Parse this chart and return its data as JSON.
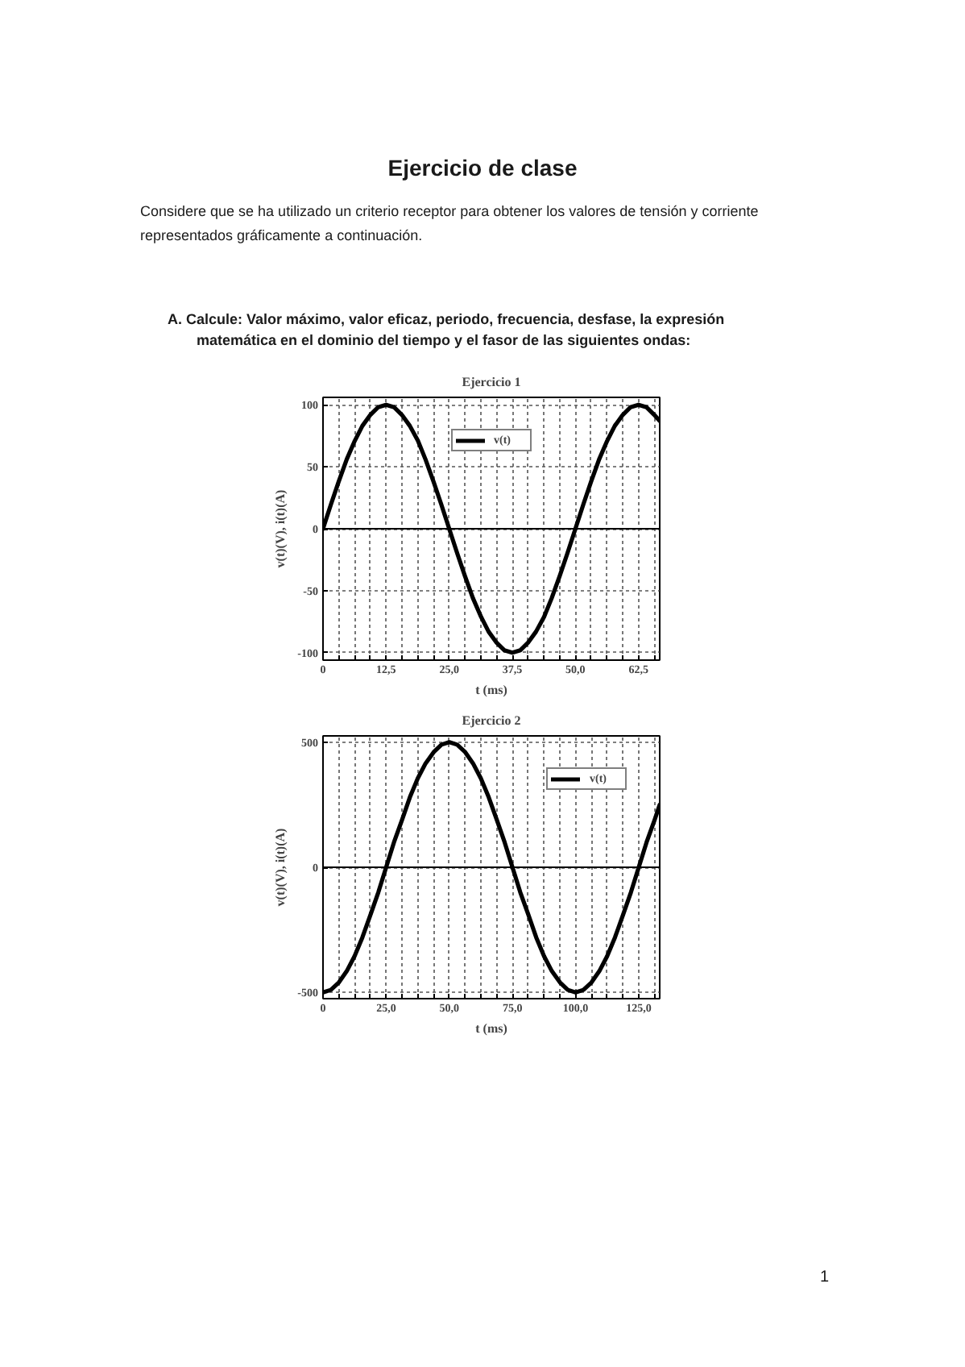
{
  "chart_data": [
    {
      "type": "other",
      "title": "Ejercicio de clase",
      "subtitle": "Considere que se ha utilizado un criterio receptor para obtener los valores de tensión y corriente representados gráficamente a continuación.",
      "annotations": [
        "A. Calcule: Valor máximo, valor eficaz, periodo, frecuencia, desfase, la expresión matemática en el dominio del tiempo y el fasor de las siguientes ondas:"
      ]
    },
    {
      "type": "line",
      "title": "Ejercicio 1",
      "xlabel": "t (ms)",
      "ylabel": "v(t)(V), i(t)(A)",
      "x": [
        0,
        1.6,
        3.1,
        4.7,
        6.3,
        7.8,
        9.4,
        10.9,
        12.5,
        14.1,
        15.6,
        17.2,
        18.8,
        20.3,
        21.9,
        23.4,
        25,
        26.6,
        28.1,
        29.7,
        31.3,
        32.8,
        34.4,
        35.9,
        37.5,
        39.1,
        40.6,
        42.2,
        43.8,
        45.3,
        46.9,
        48.4,
        50,
        51.6,
        53.1,
        54.7,
        56.3,
        57.8,
        59.4,
        60.9,
        62.5,
        64.1,
        65.6,
        66.7
      ],
      "series": [
        {
          "name": "v(t)",
          "color": "#000000",
          "values": [
            0,
            20,
            38,
            56,
            71,
            83,
            92,
            98,
            100,
            98,
            92,
            83,
            71,
            56,
            38,
            20,
            0,
            -20,
            -38,
            -56,
            -71,
            -83,
            -92,
            -98,
            -100,
            -98,
            -92,
            -83,
            -71,
            -56,
            -38,
            -20,
            0,
            20,
            38,
            56,
            71,
            83,
            92,
            98,
            100,
            98,
            92,
            87
          ]
        }
      ],
      "xlim": [
        0,
        66.7
      ],
      "ylim": [
        -106,
        106
      ],
      "xticks": [
        0,
        {
          "value": 3.125,
          "label": null
        },
        {
          "value": 6.25,
          "label": null
        },
        {
          "value": 9.375,
          "label": null
        },
        {
          "value": 12.5,
          "label": "12,5"
        },
        {
          "value": 15.625,
          "label": null
        },
        {
          "value": 18.75,
          "label": null
        },
        {
          "value": 21.875,
          "label": null
        },
        {
          "value": 25,
          "label": "25,0"
        },
        {
          "value": 28.125,
          "label": null
        },
        {
          "value": 31.25,
          "label": null
        },
        {
          "value": 34.375,
          "label": null
        },
        {
          "value": 37.5,
          "label": "37,5"
        },
        {
          "value": 40.625,
          "label": null
        },
        {
          "value": 43.75,
          "label": null
        },
        {
          "value": 46.875,
          "label": null
        },
        {
          "value": 50,
          "label": "50,0"
        },
        {
          "value": 53.125,
          "label": null
        },
        {
          "value": 56.25,
          "label": null
        },
        {
          "value": 59.375,
          "label": null
        },
        {
          "value": 62.5,
          "label": "62,5"
        },
        {
          "value": 65.625,
          "label": null
        }
      ],
      "yticks": [
        -100,
        -50,
        0,
        50,
        100
      ],
      "grid": true,
      "legend": "top",
      "ref_lines": [
        {
          "axis": "y",
          "value": 0,
          "color": "#000000"
        }
      ]
    },
    {
      "type": "line",
      "title": "Ejercicio 2",
      "xlabel": "t (ms)",
      "ylabel": "v(t)(V), i(t)(A)",
      "x": [
        0,
        3.1,
        6.3,
        9.4,
        12.5,
        15.6,
        18.8,
        21.9,
        25,
        28.1,
        31.3,
        34.4,
        37.5,
        40.6,
        43.8,
        46.9,
        50,
        53.1,
        56.3,
        59.4,
        62.5,
        65.6,
        68.8,
        71.9,
        75,
        78.1,
        81.3,
        84.4,
        87.5,
        90.6,
        93.8,
        96.9,
        100,
        103.1,
        106.3,
        109.4,
        112.5,
        115.6,
        118.8,
        121.9,
        125,
        128.1,
        131.3,
        133.3
      ],
      "series": [
        {
          "name": "v(t)",
          "color": "#000000",
          "values": [
            -500,
            -490,
            -460,
            -415,
            -355,
            -280,
            -190,
            -100,
            0,
            100,
            190,
            280,
            355,
            415,
            460,
            490,
            500,
            490,
            460,
            415,
            355,
            280,
            190,
            100,
            0,
            -100,
            -190,
            -280,
            -355,
            -415,
            -460,
            -490,
            -500,
            -490,
            -460,
            -415,
            -355,
            -280,
            -190,
            -100,
            0,
            100,
            190,
            250
          ]
        }
      ],
      "xlim": [
        0,
        133.3
      ],
      "ylim": [
        -525,
        525
      ],
      "xticks": [
        0,
        {
          "value": 6.25,
          "label": null
        },
        {
          "value": 12.5,
          "label": null
        },
        {
          "value": 18.75,
          "label": null
        },
        {
          "value": 25,
          "label": "25,0"
        },
        {
          "value": 31.25,
          "label": null
        },
        {
          "value": 37.5,
          "label": null
        },
        {
          "value": 43.75,
          "label": null
        },
        {
          "value": 50,
          "label": "50,0"
        },
        {
          "value": 56.25,
          "label": null
        },
        {
          "value": 62.5,
          "label": null
        },
        {
          "value": 68.75,
          "label": null
        },
        {
          "value": 75,
          "label": "75,0"
        },
        {
          "value": 81.25,
          "label": null
        },
        {
          "value": 87.5,
          "label": null
        },
        {
          "value": 93.75,
          "label": null
        },
        {
          "value": 100,
          "label": "100,0"
        },
        {
          "value": 106.25,
          "label": null
        },
        {
          "value": 112.5,
          "label": null
        },
        {
          "value": 118.75,
          "label": null
        },
        {
          "value": 125,
          "label": "125,0"
        },
        {
          "value": 131.25,
          "label": null
        }
      ],
      "yticks": [
        -500,
        0,
        500
      ],
      "grid": true,
      "legend": "top right",
      "ref_lines": [
        {
          "axis": "y",
          "value": 0,
          "color": "#000000"
        }
      ]
    },
    {
      "type": "other",
      "annotations": [
        "1"
      ]
    }
  ]
}
